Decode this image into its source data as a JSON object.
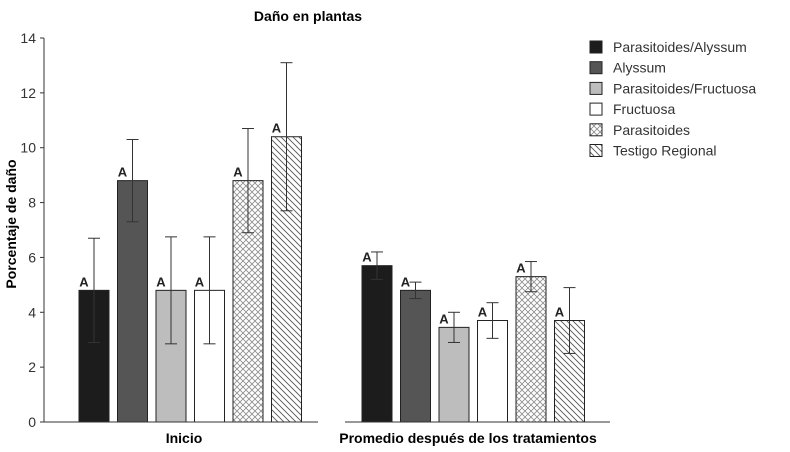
{
  "chart_data": {
    "type": "bar",
    "title": "Daño en plantas",
    "xlabel": "",
    "ylabel": "Porcentaje de daño",
    "ylim": [
      0,
      14
    ],
    "yticks": [
      0,
      2,
      4,
      6,
      8,
      10,
      12,
      14
    ],
    "grid": false,
    "legend_position": "top-right",
    "categories": [
      "Inicio",
      "Promedio después de los tratamientos"
    ],
    "series": [
      {
        "name": "Parasitoides/Alyssum",
        "fill": "solid",
        "color": "#1c1c1c",
        "values": [
          4.8,
          5.7
        ],
        "errors": [
          1.9,
          0.5
        ],
        "labels": [
          "A",
          "A"
        ]
      },
      {
        "name": "Alyssum",
        "fill": "solid",
        "color": "#555555",
        "values": [
          8.8,
          4.8
        ],
        "errors": [
          1.5,
          0.3
        ],
        "labels": [
          "A",
          "A"
        ]
      },
      {
        "name": "Parasitoides/Fructuosa",
        "fill": "solid",
        "color": "#bdbdbd",
        "values": [
          4.8,
          3.45
        ],
        "errors": [
          1.95,
          0.55
        ],
        "labels": [
          "A",
          "A"
        ]
      },
      {
        "name": "Fructuosa",
        "fill": "solid",
        "color": "#ffffff",
        "values": [
          4.8,
          3.7
        ],
        "errors": [
          1.95,
          0.65
        ],
        "labels": [
          "A",
          "A"
        ]
      },
      {
        "name": "Parasitoides",
        "fill": "crosshatch",
        "color": "#999999",
        "values": [
          8.8,
          5.3
        ],
        "errors": [
          1.9,
          0.55
        ],
        "labels": [
          "A",
          "A"
        ]
      },
      {
        "name": "Testigo Regional",
        "fill": "diagonal",
        "color": "#666666",
        "values": [
          10.4,
          3.7
        ],
        "errors": [
          2.7,
          1.2
        ],
        "labels": [
          "A",
          "A"
        ]
      }
    ]
  }
}
